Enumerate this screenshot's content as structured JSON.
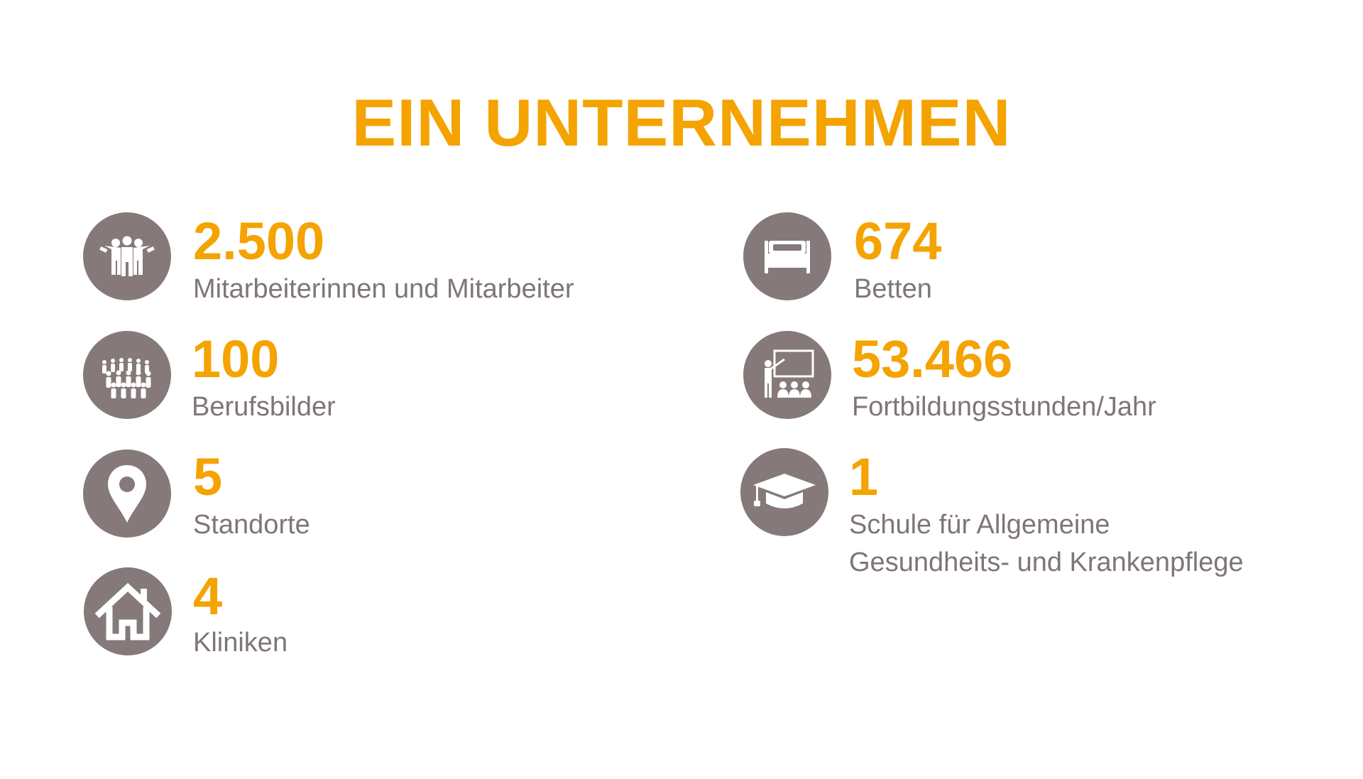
{
  "title": "EIN UNTERNEHMEN",
  "icon_color": "#85797a",
  "accent_color": "#f4a300",
  "text_color": "#7f7577",
  "stats": [
    {
      "value": "2.500",
      "label": "Mitarbeiterinnen und Mitarbeiter",
      "icon": "staff-group-icon"
    },
    {
      "value": "100",
      "label": "Berufsbilder",
      "icon": "crowd-icon"
    },
    {
      "value": "5",
      "label": "Standorte",
      "icon": "location-pin-icon"
    },
    {
      "value": "4",
      "label": "Kliniken",
      "icon": "house-icon"
    },
    {
      "value": "674",
      "label": "Betten",
      "icon": "bed-icon"
    },
    {
      "value": "53.466",
      "label": "Fortbildungsstunden/Jahr",
      "icon": "presentation-icon"
    },
    {
      "value": "1",
      "label_line1": "Schule für Allgemeine",
      "label_line2": "Gesundheits- und Krankenpflege",
      "icon": "graduation-cap-icon"
    }
  ]
}
